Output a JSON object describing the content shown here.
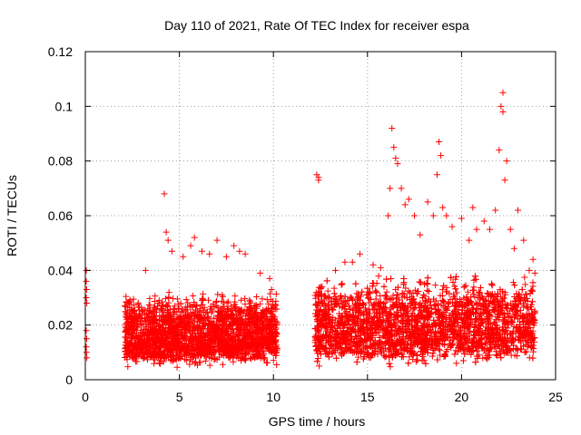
{
  "chart_data": {
    "type": "scatter",
    "title": "Day 110 of 2021, Rate Of TEC Index for receiver espa",
    "xlabel": "GPS time / hours",
    "ylabel": "ROTI / TECUs",
    "xlim": [
      0,
      25
    ],
    "ylim": [
      0,
      0.12
    ],
    "xticks": [
      0,
      5,
      10,
      15,
      20,
      25
    ],
    "yticks": [
      0,
      0.02,
      0.04,
      0.06,
      0.08,
      0.1,
      0.12
    ],
    "xtick_labels": [
      "0",
      "5",
      "10",
      "15",
      "20",
      "25"
    ],
    "ytick_labels": [
      "0",
      "0.02",
      "0.04",
      "0.06",
      "0.08",
      "0.1",
      "0.12"
    ],
    "grid": true,
    "marker": "+",
    "color": "#ff0000",
    "series": [
      {
        "name": "ROTI",
        "points": [
          [
            0.05,
            0.04
          ],
          [
            0.05,
            0.036
          ],
          [
            0.07,
            0.033
          ],
          [
            0.05,
            0.03
          ],
          [
            0.08,
            0.028
          ],
          [
            0.05,
            0.018
          ],
          [
            0.07,
            0.015
          ],
          [
            0.05,
            0.012
          ],
          [
            0.06,
            0.01
          ],
          [
            0.08,
            0.008
          ],
          [
            2.1,
            0.027
          ],
          [
            2.2,
            0.024
          ],
          [
            3.2,
            0.04
          ],
          [
            4.2,
            0.068
          ],
          [
            4.3,
            0.054
          ],
          [
            4.4,
            0.051
          ],
          [
            4.6,
            0.047
          ],
          [
            5.2,
            0.045
          ],
          [
            5.6,
            0.049
          ],
          [
            5.8,
            0.052
          ],
          [
            6.2,
            0.047
          ],
          [
            6.6,
            0.046
          ],
          [
            7.0,
            0.051
          ],
          [
            7.5,
            0.045
          ],
          [
            7.9,
            0.049
          ],
          [
            8.2,
            0.047
          ],
          [
            8.5,
            0.046
          ],
          [
            9.3,
            0.039
          ],
          [
            9.8,
            0.037
          ],
          [
            9.9,
            0.033
          ],
          [
            12.3,
            0.075
          ],
          [
            12.4,
            0.073
          ],
          [
            12.4,
            0.074
          ],
          [
            13.3,
            0.04
          ],
          [
            13.8,
            0.043
          ],
          [
            14.2,
            0.043
          ],
          [
            14.6,
            0.046
          ],
          [
            15.3,
            0.042
          ],
          [
            15.7,
            0.041
          ],
          [
            16.1,
            0.06
          ],
          [
            16.2,
            0.07
          ],
          [
            16.3,
            0.092
          ],
          [
            16.4,
            0.085
          ],
          [
            16.5,
            0.081
          ],
          [
            16.6,
            0.079
          ],
          [
            16.8,
            0.07
          ],
          [
            17.0,
            0.064
          ],
          [
            17.2,
            0.066
          ],
          [
            17.5,
            0.06
          ],
          [
            17.8,
            0.053
          ],
          [
            18.2,
            0.065
          ],
          [
            18.5,
            0.06
          ],
          [
            18.7,
            0.075
          ],
          [
            18.8,
            0.087
          ],
          [
            18.9,
            0.082
          ],
          [
            19.0,
            0.063
          ],
          [
            19.2,
            0.06
          ],
          [
            19.5,
            0.056
          ],
          [
            20.0,
            0.059
          ],
          [
            20.4,
            0.051
          ],
          [
            20.6,
            0.063
          ],
          [
            20.8,
            0.055
          ],
          [
            21.2,
            0.058
          ],
          [
            21.5,
            0.055
          ],
          [
            21.8,
            0.062
          ],
          [
            22.0,
            0.084
          ],
          [
            22.1,
            0.1
          ],
          [
            22.2,
            0.105
          ],
          [
            22.2,
            0.098
          ],
          [
            22.3,
            0.073
          ],
          [
            22.4,
            0.08
          ],
          [
            22.6,
            0.055
          ],
          [
            22.8,
            0.048
          ],
          [
            23.0,
            0.062
          ],
          [
            23.3,
            0.051
          ],
          [
            23.6,
            0.04
          ],
          [
            23.8,
            0.044
          ],
          [
            23.9,
            0.039
          ]
        ],
        "dense_segments": [
          {
            "x_range": [
              2.1,
              10.2
            ],
            "y_band": [
              0.004,
              0.032
            ],
            "y_center": 0.014,
            "count": 2200
          },
          {
            "x_range": [
              12.2,
              23.9
            ],
            "y_band": [
              0.004,
              0.038
            ],
            "y_center": 0.017,
            "count": 3400
          }
        ]
      }
    ]
  }
}
